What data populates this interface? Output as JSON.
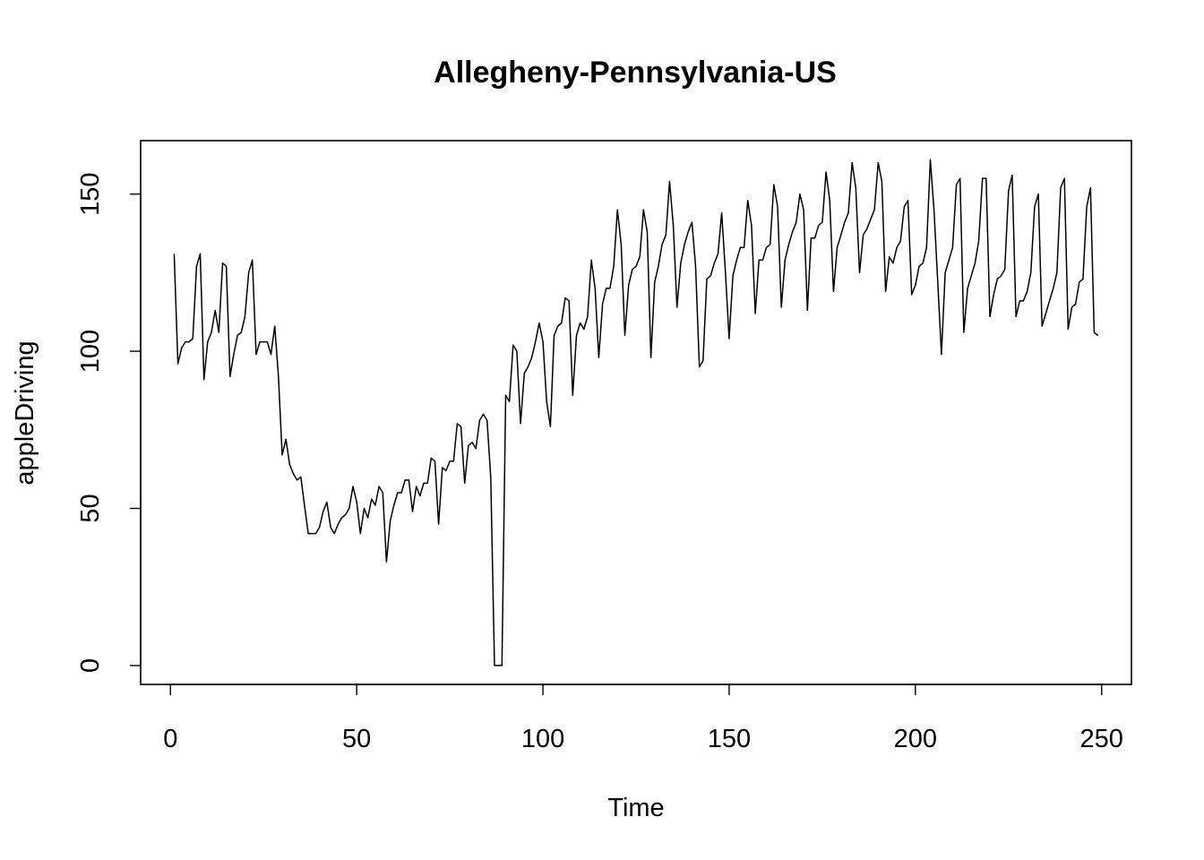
{
  "chart_data": {
    "type": "line",
    "title": "Allegheny-Pennsylvania-US",
    "xlabel": "Time",
    "ylabel": "appleDriving",
    "xlim": [
      -8,
      258
    ],
    "ylim": [
      -6,
      167
    ],
    "x_ticks": [
      0,
      50,
      100,
      150,
      200,
      250
    ],
    "y_ticks": [
      0,
      50,
      100,
      150
    ],
    "grid": false,
    "legend": "none",
    "series_color": "#000000",
    "x_start": 1,
    "series": [
      {
        "values": [
          131,
          96,
          101,
          103,
          103,
          104,
          127,
          131,
          91,
          103,
          106,
          113,
          106,
          128,
          127,
          92,
          99,
          105,
          106,
          111,
          125,
          129,
          99,
          103,
          103,
          103,
          99,
          108,
          92,
          67,
          72,
          64,
          61,
          59,
          60,
          51,
          42,
          42,
          42,
          44,
          49,
          52,
          44,
          42,
          45,
          47,
          48,
          50,
          57,
          52,
          42,
          50,
          47,
          53,
          51,
          57,
          55,
          33,
          46,
          51,
          55,
          55,
          59,
          59,
          49,
          57,
          54,
          58,
          58,
          66,
          65,
          45,
          63,
          62,
          65,
          65,
          77,
          76,
          58,
          70,
          71,
          69,
          78,
          80,
          78,
          60,
          0,
          0,
          0,
          86,
          84,
          102,
          100,
          77,
          93,
          95,
          98,
          103,
          109,
          103,
          84,
          76,
          105,
          108,
          109,
          117,
          116,
          86,
          105,
          109,
          107,
          111,
          129,
          120,
          98,
          115,
          120,
          120,
          127,
          145,
          134,
          105,
          121,
          126,
          127,
          130,
          145,
          138,
          98,
          122,
          127,
          134,
          137,
          154,
          140,
          114,
          128,
          134,
          138,
          141,
          127,
          95,
          97,
          123,
          124,
          128,
          131,
          144,
          125,
          104,
          124,
          129,
          133,
          133,
          148,
          140,
          112,
          129,
          129,
          133,
          134,
          153,
          146,
          114,
          129,
          134,
          138,
          141,
          150,
          145,
          113,
          136,
          136,
          140,
          141,
          157,
          148,
          119,
          133,
          137,
          141,
          144,
          160,
          152,
          125,
          137,
          139,
          142,
          145,
          160,
          154,
          119,
          130,
          128,
          133,
          135,
          146,
          148,
          118,
          121,
          127,
          128,
          133,
          161,
          145,
          122,
          99,
          125,
          129,
          133,
          153,
          155,
          106,
          120,
          124,
          128,
          135,
          155,
          155,
          111,
          118,
          123,
          124,
          126,
          151,
          156,
          111,
          116,
          116,
          119,
          125,
          146,
          150,
          108,
          112,
          116,
          120,
          125,
          152,
          155,
          107,
          114,
          115,
          122,
          123,
          146,
          152,
          106,
          105
        ]
      }
    ]
  }
}
